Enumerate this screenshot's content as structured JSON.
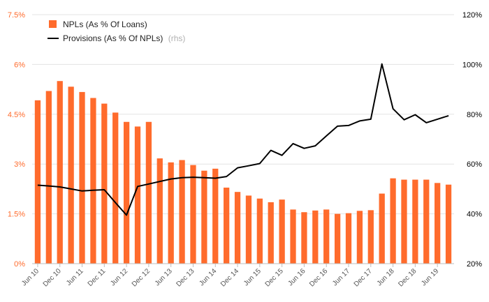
{
  "chart_data": {
    "type": "bar",
    "title": "",
    "xlabel": "",
    "ylabel": "",
    "grid": true,
    "legend_position": "top-left",
    "left_axis": {
      "ylim": [
        0,
        7.5
      ],
      "ticks": [
        0,
        1.5,
        3,
        4.5,
        6,
        7.5
      ],
      "tick_labels": [
        "0%",
        "1.5%",
        "3%",
        "4.5%",
        "6%",
        "7.5%"
      ],
      "color": "#ff6b2c"
    },
    "right_axis": {
      "ylim": [
        20,
        120
      ],
      "ticks": [
        20,
        40,
        60,
        80,
        100,
        120
      ],
      "tick_labels": [
        "20%",
        "40%",
        "60%",
        "80%",
        "100%",
        "120%"
      ],
      "color": "#000000"
    },
    "categories": [
      "Jun 10",
      "Sep 10",
      "Dec 10",
      "Mar 11",
      "Jun 11",
      "Sep 11",
      "Dec 11",
      "Mar 12",
      "Jun 12",
      "Sep 12",
      "Dec 12",
      "Mar 13",
      "Jun 13",
      "Sep 13",
      "Dec 13",
      "Mar 14",
      "Jun 14",
      "Sep 14",
      "Dec 14",
      "Mar 15",
      "Jun 15",
      "Sep 15",
      "Dec 15",
      "Mar 16",
      "Jun 16",
      "Sep 16",
      "Dec 16",
      "Mar 17",
      "Jun 17",
      "Sep 17",
      "Dec 17",
      "Mar 18",
      "Jun 18",
      "Sep 18",
      "Dec 18",
      "Mar 19",
      "Jun 19",
      "Sep 19"
    ],
    "x_tick_labels": [
      "Jun 10",
      "Dec 10",
      "Jun 11",
      "Dec 11",
      "Jun 12",
      "Dec 12",
      "Jun 13",
      "Dec 13",
      "Jun 14",
      "Dec 14",
      "Jun 15",
      "Dec 15",
      "Jun 16",
      "Dec 16",
      "Jun 17",
      "Dec 17",
      "Jun 18",
      "Dec 18",
      "Jun 19"
    ],
    "series": [
      {
        "name": "NPLs (As % Of Loans)",
        "type": "bar",
        "axis": "left",
        "color": "#ff6b2c",
        "values": [
          4.92,
          5.2,
          5.5,
          5.33,
          5.17,
          4.99,
          4.82,
          4.55,
          4.27,
          4.13,
          4.27,
          3.17,
          3.05,
          3.12,
          2.97,
          2.8,
          2.86,
          2.29,
          2.16,
          2.05,
          1.96,
          1.85,
          1.93,
          1.63,
          1.55,
          1.6,
          1.63,
          1.5,
          1.52,
          1.59,
          1.61,
          2.11,
          2.57,
          2.53,
          2.53,
          2.53,
          2.43,
          2.38
        ]
      },
      {
        "name": "Provisions (As % Of NPLs)",
        "axis_note": "(rhs)",
        "type": "line",
        "axis": "right",
        "color": "#000000",
        "values": [
          51.5,
          51.2,
          50.8,
          50,
          49.2,
          49.5,
          49.7,
          44.5,
          39.5,
          51,
          52,
          53,
          54,
          54.5,
          54.7,
          54.5,
          54.3,
          55,
          58.5,
          59.3,
          60.2,
          65.5,
          63.5,
          68.2,
          66.3,
          67.3,
          71.3,
          75.2,
          75.5,
          77.3,
          78,
          100.2,
          82.2,
          77.8,
          79.8,
          76.6,
          78,
          79.4
        ]
      }
    ]
  }
}
